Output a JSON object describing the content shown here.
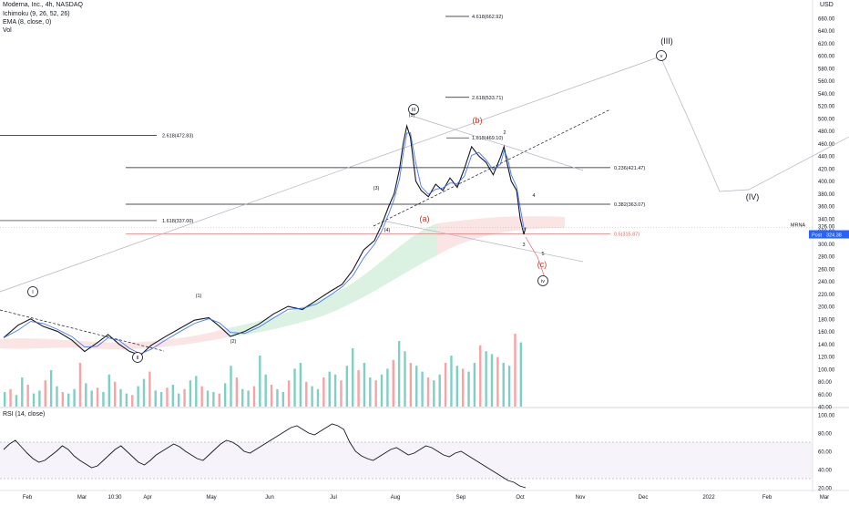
{
  "header": {
    "symbol": "Moderna, Inc., 4h, NASDAQ",
    "ichimoku": "Ichimoku (9, 26, 52, 26)",
    "ema": "EMA (8, close, 0)",
    "vol": "Vol",
    "currency": "USD"
  },
  "price_tag": {
    "symbol": "MRNA",
    "value": "326.00",
    "post_label": "Post",
    "post_value": "324.38"
  },
  "rsi_label": "RSI (14, close)",
  "chart_data": {
    "type": "line",
    "title": "Moderna, Inc., 4h, NASDAQ",
    "ylim": [
      30,
      670
    ],
    "y_ticks": [
      "660.00",
      "640.00",
      "620.00",
      "600.00",
      "580.00",
      "560.00",
      "540.00",
      "520.00",
      "500.00",
      "480.00",
      "460.00",
      "440.00",
      "420.00",
      "400.00",
      "380.00",
      "360.00",
      "340.00",
      "320.00",
      "300.00",
      "280.00",
      "260.00",
      "240.00",
      "220.00",
      "200.00",
      "180.00",
      "160.00",
      "140.00",
      "120.00",
      "100.00",
      "80.00",
      "60.00",
      "40.00"
    ],
    "x_ticks": [
      "Feb",
      "Mar",
      "10:30",
      "Apr",
      "May",
      "Jun",
      "Jul",
      "Aug",
      "Sep",
      "Oct",
      "Nov",
      "Dec",
      "2022",
      "Feb",
      "Mar"
    ],
    "price_points": [
      {
        "d": 0,
        "v": 150
      },
      {
        "d": 8,
        "v": 170
      },
      {
        "d": 15,
        "v": 180
      },
      {
        "d": 22,
        "v": 168
      },
      {
        "d": 30,
        "v": 160
      },
      {
        "d": 38,
        "v": 146
      },
      {
        "d": 45,
        "v": 128
      },
      {
        "d": 52,
        "v": 142
      },
      {
        "d": 58,
        "v": 155
      },
      {
        "d": 64,
        "v": 140
      },
      {
        "d": 70,
        "v": 128
      },
      {
        "d": 76,
        "v": 122
      },
      {
        "d": 82,
        "v": 138
      },
      {
        "d": 90,
        "v": 152
      },
      {
        "d": 98,
        "v": 165
      },
      {
        "d": 106,
        "v": 178
      },
      {
        "d": 114,
        "v": 182
      },
      {
        "d": 120,
        "v": 168
      },
      {
        "d": 126,
        "v": 152
      },
      {
        "d": 134,
        "v": 160
      },
      {
        "d": 142,
        "v": 172
      },
      {
        "d": 150,
        "v": 188
      },
      {
        "d": 158,
        "v": 200
      },
      {
        "d": 166,
        "v": 195
      },
      {
        "d": 174,
        "v": 210
      },
      {
        "d": 182,
        "v": 225
      },
      {
        "d": 188,
        "v": 235
      },
      {
        "d": 194,
        "v": 258
      },
      {
        "d": 200,
        "v": 290
      },
      {
        "d": 206,
        "v": 305
      },
      {
        "d": 210,
        "v": 330
      },
      {
        "d": 214,
        "v": 360
      },
      {
        "d": 217,
        "v": 380
      },
      {
        "d": 220,
        "v": 420
      },
      {
        "d": 222,
        "v": 460
      },
      {
        "d": 224,
        "v": 488
      },
      {
        "d": 226,
        "v": 470
      },
      {
        "d": 229,
        "v": 400
      },
      {
        "d": 232,
        "v": 385
      },
      {
        "d": 236,
        "v": 375
      },
      {
        "d": 240,
        "v": 395
      },
      {
        "d": 244,
        "v": 385
      },
      {
        "d": 248,
        "v": 405
      },
      {
        "d": 252,
        "v": 390
      },
      {
        "d": 256,
        "v": 420
      },
      {
        "d": 260,
        "v": 455
      },
      {
        "d": 264,
        "v": 440
      },
      {
        "d": 268,
        "v": 430
      },
      {
        "d": 272,
        "v": 410
      },
      {
        "d": 276,
        "v": 438
      },
      {
        "d": 278,
        "v": 455
      },
      {
        "d": 280,
        "v": 425
      },
      {
        "d": 282,
        "v": 400
      },
      {
        "d": 285,
        "v": 385
      },
      {
        "d": 287,
        "v": 340
      },
      {
        "d": 289,
        "v": 315
      },
      {
        "d": 290,
        "v": 326
      }
    ],
    "fib_levels": [
      {
        "label": "4.618(662.92)",
        "value": 662.92
      },
      {
        "label": "2.618(533.71)",
        "value": 533.71
      },
      {
        "label": "2.618(472.83)",
        "value": 472.83
      },
      {
        "label": "1.618(469.10)",
        "value": 469.1
      },
      {
        "label": "0.236(421.47)",
        "value": 421.47
      },
      {
        "label": "0.382(363.07)",
        "value": 363.07
      },
      {
        "label": "1.618(337.00)",
        "value": 337.0
      },
      {
        "label": "0.5(315.87)",
        "value": 315.87
      }
    ],
    "wave_labels": [
      "I",
      "II",
      "III",
      "(III)",
      "(IV)",
      "iv",
      "v",
      "(a)",
      "(b)",
      "(c)",
      "(1)",
      "(2)",
      "(3)",
      "(4)",
      "(5)",
      "2",
      "3",
      "4",
      "5"
    ],
    "volume": [
      10,
      12,
      8,
      20,
      15,
      9,
      11,
      18,
      25,
      14,
      10,
      9,
      12,
      30,
      16,
      11,
      13,
      10,
      22,
      17,
      12,
      9,
      8,
      14,
      19,
      24,
      11,
      10,
      13,
      15,
      9,
      12,
      18,
      21,
      14,
      11,
      10,
      9,
      16,
      28,
      20,
      12,
      11,
      14,
      35,
      22,
      15,
      12,
      10,
      18,
      26,
      30,
      17,
      14,
      12,
      20,
      24,
      22,
      18,
      28,
      40,
      25,
      30,
      20,
      18,
      22,
      26,
      32,
      45,
      38,
      30,
      28,
      24,
      20,
      18,
      22,
      30,
      35,
      28,
      26,
      24,
      30,
      42,
      38,
      36,
      34,
      30,
      28,
      50,
      44
    ],
    "rsi": {
      "ylim": [
        20,
        100
      ],
      "y_ticks": [
        "100.00",
        "80.00",
        "60.00",
        "40.00",
        "20.00"
      ],
      "values": [
        62,
        68,
        72,
        65,
        58,
        52,
        48,
        50,
        55,
        60,
        66,
        62,
        55,
        50,
        46,
        42,
        44,
        50,
        56,
        62,
        66,
        60,
        54,
        48,
        45,
        50,
        56,
        60,
        64,
        68,
        65,
        60,
        56,
        52,
        50,
        56,
        62,
        68,
        72,
        70,
        66,
        60,
        58,
        62,
        66,
        70,
        74,
        78,
        82,
        86,
        88,
        84,
        80,
        78,
        82,
        86,
        90,
        88,
        84,
        70,
        60,
        55,
        52,
        50,
        54,
        58,
        62,
        64,
        60,
        56,
        58,
        62,
        66,
        64,
        60,
        56,
        54,
        58,
        60,
        56,
        52,
        48,
        44,
        40,
        36,
        32,
        28,
        26,
        22,
        20
      ]
    }
  }
}
